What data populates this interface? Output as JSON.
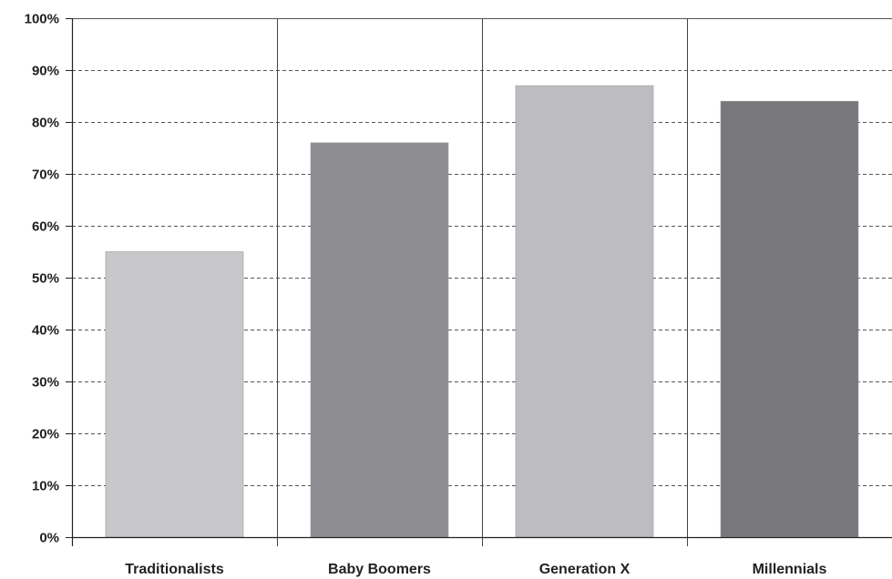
{
  "chart_data": {
    "type": "bar",
    "categories": [
      "Traditionalists",
      "Baby Boomers",
      "Generation X",
      "Millennials"
    ],
    "values": [
      55,
      76,
      87,
      84
    ],
    "bar_colors": [
      "#c8c8cb",
      "#8e8e92",
      "#bdbdc1",
      "#78787c"
    ],
    "ylim": [
      0,
      100
    ],
    "yticks": [
      0,
      10,
      20,
      30,
      40,
      50,
      60,
      70,
      80,
      90,
      100
    ],
    "ytick_labels": [
      "0%",
      "10%",
      "20%",
      "30%",
      "40%",
      "50%",
      "60%",
      "70%",
      "80%",
      "90%",
      "100%"
    ],
    "title": "",
    "xlabel": "",
    "ylabel": "",
    "grid": "horizontal dashed",
    "legend": "none"
  }
}
